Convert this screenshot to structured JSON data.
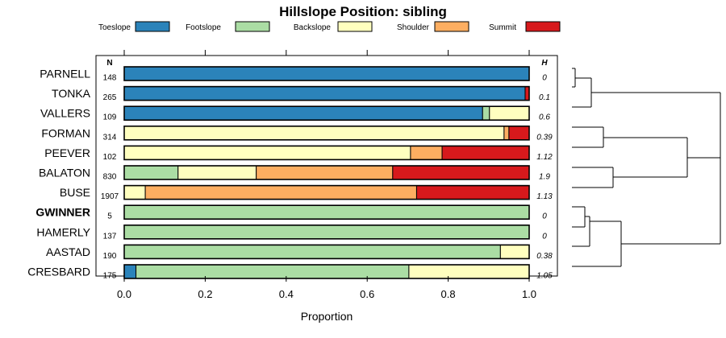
{
  "chart_data": {
    "type": "bar",
    "stacked": true,
    "orientation": "horizontal",
    "title": "Hillslope Position: sibling",
    "xlabel": "Proportion",
    "ylabel": "",
    "xlim": [
      0,
      1
    ],
    "xticks": [
      "0.0",
      "0.2",
      "0.4",
      "0.6",
      "0.8",
      "1.0"
    ],
    "legend_position": "top",
    "n_header": "N",
    "h_header": "H",
    "legend": [
      {
        "name": "Toeslope",
        "color": "#2b83ba"
      },
      {
        "name": "Footslope",
        "color": "#abdda4"
      },
      {
        "name": "Backslope",
        "color": "#ffffbf"
      },
      {
        "name": "Shoulder",
        "color": "#fdae61"
      },
      {
        "name": "Summit",
        "color": "#d7191c"
      }
    ],
    "categories": [
      {
        "name": "PARNELL",
        "bold": false,
        "n": "148",
        "h": "0",
        "values": [
          1.0,
          0,
          0,
          0,
          0
        ]
      },
      {
        "name": "TONKA",
        "bold": false,
        "n": "265",
        "h": "0.1",
        "values": [
          0.99,
          0,
          0,
          0,
          0.01
        ]
      },
      {
        "name": "VALLERS",
        "bold": false,
        "n": "109",
        "h": "0.6",
        "values": [
          0.885,
          0.017,
          0.098,
          0,
          0
        ]
      },
      {
        "name": "FORMAN",
        "bold": false,
        "n": "314",
        "h": "0.39",
        "values": [
          0,
          0,
          0.938,
          0.012,
          0.05
        ]
      },
      {
        "name": "PEEVER",
        "bold": false,
        "n": "102",
        "h": "1.12",
        "values": [
          0,
          0,
          0.707,
          0.078,
          0.215
        ]
      },
      {
        "name": "BALATON",
        "bold": false,
        "n": "830",
        "h": "1.9",
        "values": [
          0,
          0.133,
          0.193,
          0.337,
          0.337
        ]
      },
      {
        "name": "BUSE",
        "bold": false,
        "n": "1907",
        "h": "1.13",
        "values": [
          0,
          0,
          0.052,
          0.67,
          0.278
        ]
      },
      {
        "name": "GWINNER",
        "bold": true,
        "n": "5",
        "h": "0",
        "values": [
          0,
          1.0,
          0,
          0,
          0
        ]
      },
      {
        "name": "HAMERLY",
        "bold": false,
        "n": "137",
        "h": "0",
        "values": [
          0,
          1.0,
          0,
          0,
          0
        ]
      },
      {
        "name": "AASTAD",
        "bold": false,
        "n": "190",
        "h": "0.38",
        "values": [
          0,
          0.929,
          0.071,
          0,
          0
        ]
      },
      {
        "name": "CRESBARD",
        "bold": false,
        "n": "175",
        "h": "1.05",
        "values": [
          0.029,
          0.674,
          0.297,
          0,
          0
        ]
      }
    ]
  }
}
